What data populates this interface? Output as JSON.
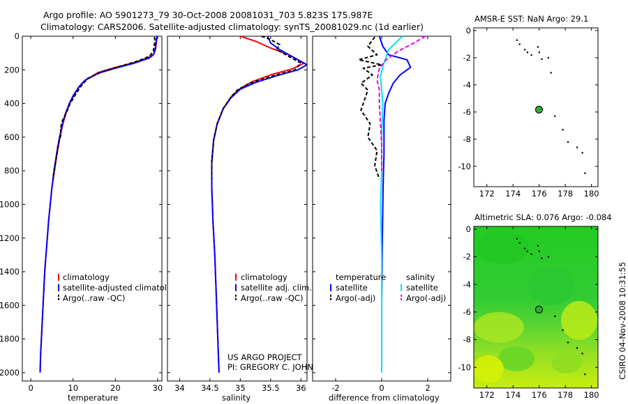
{
  "header": {
    "title_line1": "Argo profile: AO 5901273_79 30-Oct-2008 20081031_703 5.823S 175.987E",
    "title_line2": "Climatology: CARS2006. Satellite-adjusted climatology: synTS_20081029.nc (1d earlier)"
  },
  "credit": {
    "line1": "US ARGO PROJECT",
    "line2": "PI: GREGORY C. JOHNSON"
  },
  "side_stamp": "CSIRO 04-Nov-2008 10:31:55",
  "colors": {
    "climatology": "#ff0000",
    "satellite": "#0000ff",
    "argo": "#000000",
    "salinity_satellite": "#00e5ee",
    "salinity_argo": "#ee00ee",
    "map_dot": "#33aa33"
  },
  "chart_data": [
    {
      "id": "temperature",
      "type": "line",
      "xlabel": "temperature",
      "ylabel": "depth",
      "xlim": [
        -2,
        31
      ],
      "ylim": [
        2050,
        0
      ],
      "xticks": [
        0,
        10,
        20,
        30
      ],
      "yticks": [
        0,
        200,
        400,
        600,
        800,
        1000,
        1200,
        1400,
        1600,
        1800,
        2000
      ],
      "legend": [
        "climatology",
        "satellite-adjusted climatology",
        "Argo(..raw -QC)"
      ],
      "series": [
        {
          "name": "climatology",
          "color": "#ff0000",
          "dash": "",
          "points": [
            [
              29.8,
              0
            ],
            [
              29.7,
              40
            ],
            [
              29.5,
              80
            ],
            [
              29.0,
              110
            ],
            [
              27.5,
              130
            ],
            [
              24.0,
              160
            ],
            [
              20.0,
              185
            ],
            [
              16.0,
              215
            ],
            [
              13.0,
              260
            ],
            [
              11.5,
              300
            ],
            [
              10.2,
              350
            ],
            [
              9.2,
              400
            ],
            [
              8.3,
              460
            ],
            [
              7.6,
              520
            ],
            [
              6.9,
              600
            ],
            [
              6.2,
              700
            ],
            [
              5.6,
              800
            ],
            [
              5.0,
              900
            ],
            [
              4.6,
              1000
            ],
            [
              4.2,
              1100
            ],
            [
              3.9,
              1200
            ],
            [
              3.6,
              1300
            ],
            [
              3.3,
              1400
            ],
            [
              3.1,
              1500
            ],
            [
              2.9,
              1600
            ],
            [
              2.7,
              1700
            ],
            [
              2.5,
              1800
            ],
            [
              2.3,
              1900
            ],
            [
              2.2,
              2000
            ]
          ]
        },
        {
          "name": "satellite-adjusted climatology",
          "color": "#0000ff",
          "dash": "",
          "points": [
            [
              29.8,
              0
            ],
            [
              29.6,
              40
            ],
            [
              29.4,
              80
            ],
            [
              29.0,
              110
            ],
            [
              28.0,
              130
            ],
            [
              24.5,
              160
            ],
            [
              20.0,
              190
            ],
            [
              16.0,
              220
            ],
            [
              12.8,
              262
            ],
            [
              11.4,
              300
            ],
            [
              10.1,
              350
            ],
            [
              9.1,
              400
            ],
            [
              8.2,
              460
            ],
            [
              7.5,
              520
            ],
            [
              6.8,
              600
            ],
            [
              6.1,
              700
            ],
            [
              5.5,
              800
            ],
            [
              5.0,
              900
            ],
            [
              4.6,
              1000
            ],
            [
              4.2,
              1100
            ],
            [
              3.9,
              1200
            ],
            [
              3.6,
              1300
            ],
            [
              3.3,
              1400
            ],
            [
              3.1,
              1500
            ],
            [
              2.9,
              1600
            ],
            [
              2.7,
              1700
            ],
            [
              2.5,
              1800
            ],
            [
              2.3,
              1900
            ],
            [
              2.2,
              2000
            ]
          ]
        },
        {
          "name": "Argo(..raw -QC)",
          "color": "#000000",
          "dash": "5,3",
          "points": [
            [
              29.2,
              5
            ],
            [
              29.4,
              30
            ],
            [
              29.1,
              60
            ],
            [
              29.0,
              90
            ],
            [
              28.0,
              120
            ],
            [
              25.0,
              150
            ],
            [
              21.0,
              180
            ],
            [
              17.0,
              210
            ],
            [
              13.5,
              250
            ],
            [
              11.8,
              300
            ],
            [
              10.5,
              350
            ],
            [
              9.3,
              400
            ],
            [
              8.5,
              450
            ],
            [
              7.5,
              500
            ],
            [
              7.0,
              550
            ],
            [
              7.2,
              580
            ],
            [
              6.4,
              650
            ],
            [
              6.2,
              700
            ],
            [
              5.6,
              780
            ],
            [
              5.2,
              850
            ]
          ]
        }
      ]
    },
    {
      "id": "salinity",
      "type": "line",
      "xlabel": "salinity",
      "xlim": [
        33.8,
        36.1
      ],
      "ylim": [
        2050,
        0
      ],
      "xticks": [
        34,
        34.5,
        35,
        35.5,
        36
      ],
      "legend": [
        "climatology",
        "satellite adj. clim.",
        "Argo(..raw -QC)"
      ],
      "series": [
        {
          "name": "climatology",
          "color": "#ff0000",
          "dash": "",
          "points": [
            [
              35.0,
              0
            ],
            [
              35.25,
              30
            ],
            [
              35.5,
              70
            ],
            [
              35.8,
              110
            ],
            [
              36.05,
              160
            ],
            [
              35.85,
              195
            ],
            [
              35.5,
              230
            ],
            [
              35.2,
              270
            ],
            [
              35.0,
              310
            ],
            [
              34.85,
              360
            ],
            [
              34.72,
              430
            ],
            [
              34.62,
              520
            ],
            [
              34.56,
              620
            ],
            [
              34.53,
              750
            ],
            [
              34.53,
              900
            ],
            [
              34.55,
              1100
            ],
            [
              34.58,
              1300
            ],
            [
              34.6,
              1500
            ],
            [
              34.62,
              1700
            ],
            [
              34.64,
              1900
            ],
            [
              34.65,
              2000
            ]
          ]
        },
        {
          "name": "satellite adj. clim.",
          "color": "#0000ff",
          "dash": "",
          "points": [
            [
              35.45,
              0
            ],
            [
              35.5,
              40
            ],
            [
              35.65,
              80
            ],
            [
              35.85,
              120
            ],
            [
              36.1,
              170
            ],
            [
              35.95,
              200
            ],
            [
              35.6,
              235
            ],
            [
              35.25,
              275
            ],
            [
              35.0,
              315
            ],
            [
              34.85,
              365
            ],
            [
              34.72,
              430
            ],
            [
              34.62,
              520
            ],
            [
              34.56,
              620
            ],
            [
              34.53,
              750
            ],
            [
              34.53,
              900
            ],
            [
              34.55,
              1100
            ],
            [
              34.58,
              1300
            ],
            [
              34.6,
              1500
            ],
            [
              34.62,
              1700
            ],
            [
              34.64,
              1900
            ],
            [
              34.65,
              2000
            ]
          ]
        },
        {
          "name": "Argo(..raw -QC)",
          "color": "#000000",
          "dash": "5,3",
          "points": [
            [
              35.35,
              0
            ],
            [
              35.5,
              20
            ],
            [
              35.65,
              50
            ],
            [
              35.6,
              80
            ],
            [
              35.8,
              120
            ],
            [
              36.0,
              160
            ],
            [
              35.9,
              200
            ],
            [
              35.5,
              240
            ],
            [
              35.15,
              280
            ],
            [
              34.95,
              320
            ],
            [
              34.85,
              360
            ],
            [
              34.72,
              430
            ],
            [
              34.62,
              520
            ],
            [
              34.56,
              620
            ],
            [
              34.53,
              750
            ],
            [
              34.53,
              850
            ]
          ]
        }
      ]
    },
    {
      "id": "difference",
      "type": "line",
      "xlabel": "difference from climatology",
      "xlim": [
        -3,
        3
      ],
      "ylim": [
        2050,
        0
      ],
      "xticks": [
        -2,
        0,
        2
      ],
      "legend_header": [
        "temperature",
        "salinity"
      ],
      "legend": [
        "satellite",
        "Argo(-adj)",
        "satellite",
        "Argo(-adj)"
      ],
      "series": [
        {
          "name": "temperature satellite",
          "color": "#0000ff",
          "dash": "",
          "points": [
            [
              -0.1,
              0
            ],
            [
              0.05,
              60
            ],
            [
              0.3,
              110
            ],
            [
              1.1,
              140
            ],
            [
              1.25,
              185
            ],
            [
              0.8,
              230
            ],
            [
              0.5,
              280
            ],
            [
              0.3,
              340
            ],
            [
              0.15,
              400
            ],
            [
              0.1,
              500
            ],
            [
              0.1,
              700
            ],
            [
              0.06,
              900
            ],
            [
              0.03,
              1200
            ],
            [
              0.0,
              1600
            ],
            [
              0.0,
              2000
            ]
          ]
        },
        {
          "name": "temperature Argo(-adj)",
          "color": "#000000",
          "dash": "5,3",
          "points": [
            [
              -0.3,
              5
            ],
            [
              -0.6,
              60
            ],
            [
              -0.2,
              110
            ],
            [
              -1.0,
              140
            ],
            [
              0.0,
              170
            ],
            [
              -0.8,
              190
            ],
            [
              -0.4,
              230
            ],
            [
              -0.9,
              280
            ],
            [
              -0.6,
              320
            ],
            [
              -0.7,
              360
            ],
            [
              -0.9,
              440
            ],
            [
              -0.5,
              520
            ],
            [
              -0.6,
              600
            ],
            [
              -0.2,
              680
            ],
            [
              -0.3,
              770
            ],
            [
              -0.1,
              850
            ]
          ]
        },
        {
          "name": "salinity satellite",
          "color": "#00e5ee",
          "dash": "",
          "points": [
            [
              0.9,
              0
            ],
            [
              0.6,
              40
            ],
            [
              0.3,
              80
            ],
            [
              0.2,
              120
            ],
            [
              0.05,
              180
            ],
            [
              -0.05,
              240
            ],
            [
              0.0,
              320
            ],
            [
              0.05,
              400
            ],
            [
              0.0,
              600
            ],
            [
              0.0,
              800
            ],
            [
              -0.05,
              1000
            ],
            [
              0.0,
              1300
            ],
            [
              0.0,
              1600
            ],
            [
              0.0,
              2000
            ]
          ]
        },
        {
          "name": "salinity Argo(-adj)",
          "color": "#ee00ee",
          "dash": "6,3",
          "points": [
            [
              1.9,
              0
            ],
            [
              1.4,
              40
            ],
            [
              0.7,
              90
            ],
            [
              0.2,
              140
            ],
            [
              -0.1,
              190
            ],
            [
              -0.2,
              260
            ],
            [
              -0.1,
              320
            ],
            [
              -0.1,
              400
            ],
            [
              -0.05,
              520
            ],
            [
              0.0,
              650
            ],
            [
              0.0,
              800
            ]
          ]
        }
      ]
    },
    {
      "id": "sst_map",
      "type": "scatter",
      "title": "AMSR-E SST: NaN Argo: 29.1",
      "xlim": [
        171,
        180.5
      ],
      "ylim": [
        -11.5,
        0.2
      ],
      "xticks": [
        172,
        174,
        176,
        178,
        180
      ],
      "yticks": [
        0,
        -2,
        -4,
        -6,
        -8,
        -10
      ],
      "argo_position": [
        175.987,
        -5.823
      ],
      "track": [
        [
          174.3,
          -0.7
        ],
        [
          174.5,
          -1.0
        ],
        [
          174.9,
          -1.4
        ],
        [
          175.1,
          -1.6
        ],
        [
          175.4,
          -1.8
        ],
        [
          175.9,
          -1.2
        ],
        [
          176.0,
          -1.6
        ],
        [
          176.2,
          -2.1
        ],
        [
          176.7,
          -2.0
        ],
        [
          176.9,
          -3.1
        ],
        [
          177.2,
          -6.3
        ],
        [
          177.8,
          -7.3
        ],
        [
          178.2,
          -8.2
        ],
        [
          178.9,
          -8.6
        ],
        [
          179.3,
          -9.0
        ],
        [
          179.5,
          -10.5
        ]
      ]
    },
    {
      "id": "sla_map",
      "type": "heatmap",
      "title": "Altimetric SLA: 0.076 Argo: -0.084",
      "xlim": [
        171,
        180.5
      ],
      "ylim": [
        -11.5,
        0.2
      ],
      "xticks": [
        172,
        174,
        176,
        178,
        180
      ],
      "yticks": [
        0,
        -2,
        -4,
        -6,
        -8,
        -10
      ],
      "argo_position": [
        175.987,
        -5.823
      ],
      "track": [
        [
          174.3,
          -0.7
        ],
        [
          174.5,
          -1.0
        ],
        [
          174.9,
          -1.4
        ],
        [
          175.1,
          -1.6
        ],
        [
          175.4,
          -1.8
        ],
        [
          175.9,
          -1.2
        ],
        [
          176.0,
          -1.6
        ],
        [
          176.2,
          -2.1
        ],
        [
          176.7,
          -2.0
        ],
        [
          177.2,
          -6.3
        ],
        [
          177.8,
          -7.3
        ],
        [
          178.2,
          -8.2
        ],
        [
          178.9,
          -8.6
        ],
        [
          179.3,
          -9.0
        ],
        [
          179.5,
          -10.5
        ]
      ]
    }
  ]
}
